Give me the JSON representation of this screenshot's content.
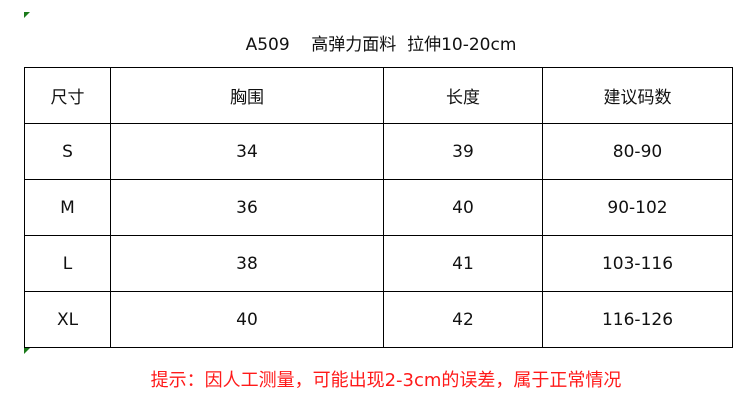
{
  "title": "A509    高弹力面料  拉伸10-20cm",
  "table": {
    "headers": [
      "尺寸",
      "胸围",
      "长度",
      "建议码数"
    ],
    "rows": [
      [
        "S",
        "34",
        "39",
        "80-90"
      ],
      [
        "M",
        "36",
        "40",
        "90-102"
      ],
      [
        "L",
        "38",
        "41",
        "103-116"
      ],
      [
        "XL",
        "40",
        "42",
        "116-126"
      ]
    ]
  },
  "note": "提示：因人工测量，可能出现2-3cm的误差，属于正常情况",
  "colors": {
    "note": "#ff1a1a",
    "corner_mark": "#1a7a1a"
  }
}
